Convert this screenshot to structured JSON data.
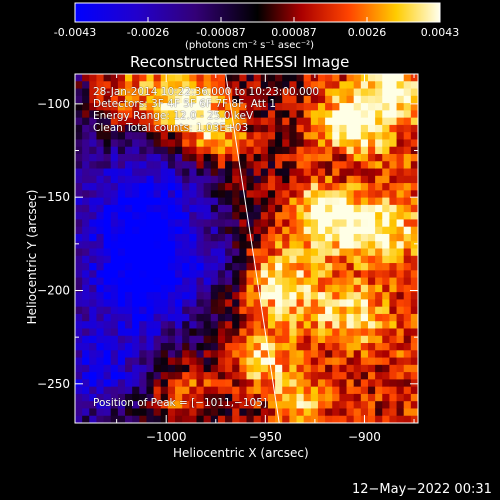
{
  "colorbar": {
    "tick_labels": [
      "-0.0043",
      "-0.0026",
      "-0.00087",
      "0.00087",
      "0.0026",
      "0.0043"
    ],
    "unit_label": "(photons cm⁻² s⁻¹ asec⁻²)"
  },
  "chart_data": {
    "type": "heatmap",
    "title": "Reconstructed RHESSI Image",
    "xlabel": "Heliocentric X (arcsec)",
    "ylabel": "Heliocentric Y (arcsec)",
    "xlim": [
      -1046,
      -873
    ],
    "ylim": [
      -271,
      -84
    ],
    "x_ticks": [
      -1000,
      -950,
      -900
    ],
    "y_ticks": [
      -100,
      -150,
      -200,
      -250
    ],
    "x_tick_labels": [
      "−1000",
      "−950",
      "−900"
    ],
    "y_tick_labels": [
      "−100",
      "−150",
      "−200",
      "−250"
    ],
    "colorscale": [
      "#0000ff",
      "#330088",
      "#000000",
      "#aa0000",
      "#ff5500",
      "#ffdd00",
      "#ffffcc"
    ],
    "value_range": [
      -0.0043,
      0.0043
    ],
    "limb_line": [
      [
        -970,
        -84
      ],
      [
        -943,
        -271
      ]
    ],
    "annotations": [
      "28-Jan-2014 10:22:36.000 to 10:23:00.000",
      "Detectors: 3F 4F 5F 6F 7F 8F, Att 1",
      "Energy Range: 12.0 - 25.0 keV",
      "Clean     Total counts: 1.03E+03",
      "Position of Peak = [−1011,−105]"
    ],
    "peak": [
      -1011,
      -105
    ]
  },
  "timestamp": "12−May−2022 00:31"
}
